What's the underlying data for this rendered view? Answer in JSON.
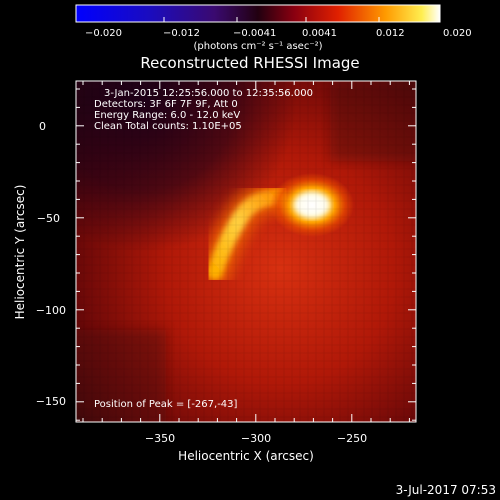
{
  "colorbar": {
    "ticks": [
      "−0.020",
      "−0.012",
      "−0.0041",
      "0.0041",
      "0.012",
      "0.020"
    ],
    "units": "(photons cm⁻² s⁻¹ asec⁻²)"
  },
  "title": "Reconstructed RHESSI Image",
  "info": {
    "line1": "3-Jan-2015 12:25:56.000 to 12:35:56.000",
    "line2": "Detectors: 3F 6F 7F 9F, Att 0",
    "line3": "Energy Range: 6.0 - 12.0 keV",
    "line4": "Clean    Total counts: 1.10E+05"
  },
  "peak_label": "Position of Peak = [-267,-43]",
  "axes": {
    "xlabel": "Heliocentric X (arcsec)",
    "ylabel": "Heliocentric Y (arcsec)",
    "xticks": [
      "−350",
      "−300",
      "−250"
    ],
    "yticks": [
      "0",
      "−50",
      "−100",
      "−150"
    ]
  },
  "footer_date": "3-Jul-2017 07:53",
  "colors": {
    "background": "#000000",
    "foreground": "#ffffff"
  }
}
